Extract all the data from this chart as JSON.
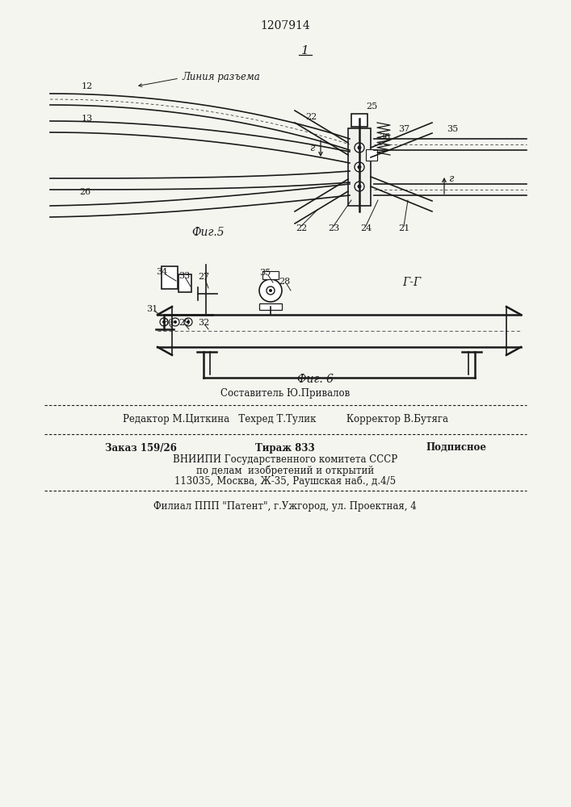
{
  "patent_number": "1207914",
  "fig5_label": "Фиг.5",
  "fig6_label": "Фиг. 6",
  "fig_1_label": "1",
  "fig_gg_label": "Г-Г",
  "liniya_razvema": "Линия разъема",
  "bottom_text_1": "Составитель Ю.Привалов",
  "bottom_text_2": "Редактор М.Циткина   Техред Т.Тулик          Корректор В.Бутяга",
  "bottom_text_3a": "Заказ 159/26",
  "bottom_text_3b": "Тираж 833",
  "bottom_text_3c": "Подписное",
  "bottom_text_4": "ВНИИПИ Государственного комитета СССР",
  "bottom_text_5": "по делам  изобретений и открытий",
  "bottom_text_6": "113035, Москва, Ж-35, Раушская наб., д.4/5",
  "bottom_text_7": "Филиал ППП \"Патент\", г.Ужгород, ул. Проектная, 4",
  "bg_color": "#f5f5f0",
  "line_color": "#1a1a1a",
  "label_color": "#1a1a1a"
}
